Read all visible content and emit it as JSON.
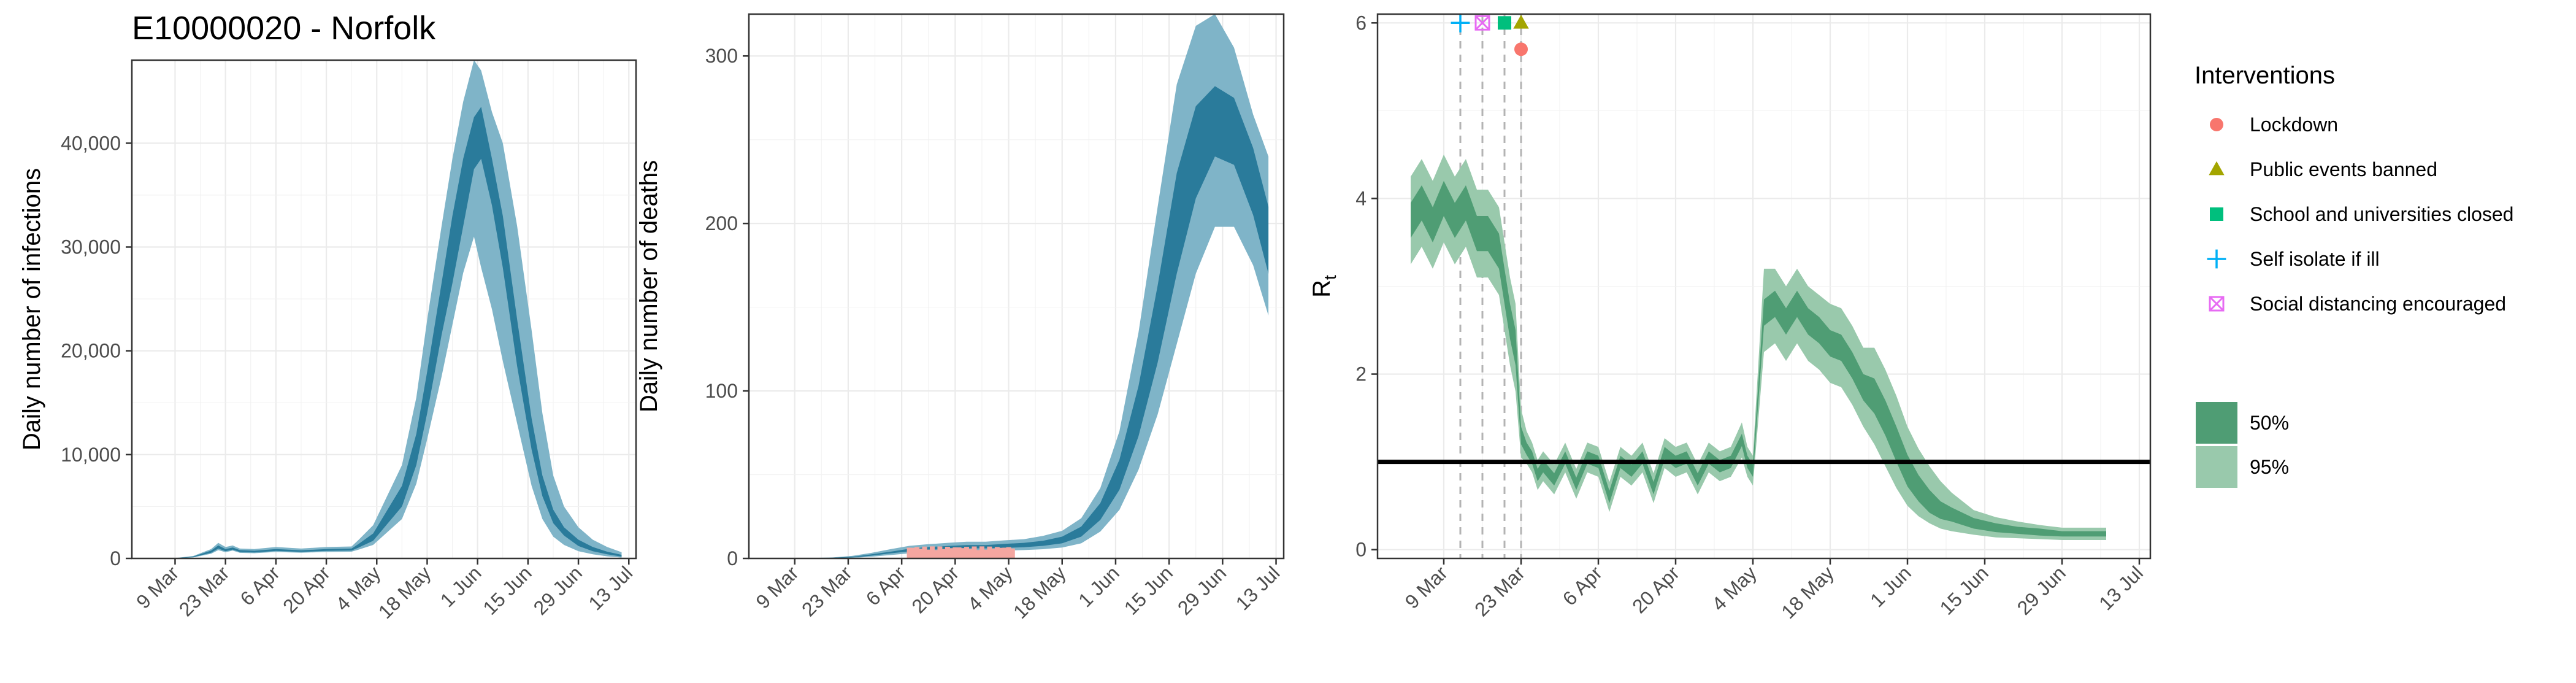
{
  "title": "E10000020 - Norfolk",
  "colors": {
    "infections_inner": "#2a7b9b",
    "infections_outer": "#7fb4c8",
    "rt_inner": "#4f9d74",
    "rt_outer": "#99c9ac",
    "lockdown": "#f8766d",
    "public_events": "#a3a500",
    "schools": "#00bf7d",
    "self_isolate": "#00b0f6",
    "social_distancing": "#e76bf3",
    "observed_deaths": "#f4a6a0"
  },
  "legend": {
    "interventions_title": "Interventions",
    "interventions": [
      {
        "label": "Lockdown",
        "shape": "circle",
        "color": "#f8766d"
      },
      {
        "label": "Public events banned",
        "shape": "triangle",
        "color": "#a3a500"
      },
      {
        "label": "School and universities closed",
        "shape": "square",
        "color": "#00bf7d"
      },
      {
        "label": "Self isolate if ill",
        "shape": "plus",
        "color": "#00b0f6"
      },
      {
        "label": "Social distancing encouraged",
        "shape": "boxed-x",
        "color": "#e76bf3"
      }
    ],
    "intervals": [
      {
        "label": "50%",
        "color": "#4f9d74"
      },
      {
        "label": "95%",
        "color": "#99c9ac"
      }
    ]
  },
  "chart_data": [
    {
      "type": "area",
      "ylabel": "Daily number of infections",
      "xlabel": "",
      "x_ticks": [
        "9 Mar",
        "23 Mar",
        "6 Apr",
        "20 Apr",
        "4 May",
        "18 May",
        "1 Jun",
        "15 Jun",
        "29 Jun",
        "13 Jul"
      ],
      "x_range_days": [
        -12,
        128
      ],
      "ylim": [
        0,
        48000
      ],
      "y_ticks": [
        0,
        10000,
        20000,
        30000,
        40000
      ],
      "y_tick_labels": [
        "0",
        "10,000",
        "20,000",
        "30,000",
        "40,000"
      ],
      "grid": true,
      "day_zero": "9 Mar",
      "series_day": [
        -6,
        0,
        5,
        10,
        12,
        14,
        16,
        18,
        22,
        28,
        35,
        42,
        49,
        51,
        55,
        63,
        67,
        70,
        74,
        77,
        80,
        83,
        85,
        88,
        91,
        95,
        99,
        102,
        105,
        108,
        112,
        116,
        120,
        124
      ],
      "median": [
        0,
        20,
        150,
        650,
        1100,
        800,
        950,
        700,
        650,
        800,
        700,
        800,
        850,
        1200,
        2000,
        6000,
        10500,
        16000,
        24000,
        30000,
        35000,
        41500,
        42000,
        36000,
        30500,
        20500,
        12000,
        7000,
        4000,
        2600,
        1500,
        900,
        500,
        250
      ],
      "ci50_low": [
        0,
        15,
        120,
        550,
        950,
        700,
        850,
        620,
        580,
        720,
        630,
        720,
        760,
        1050,
        1700,
        5000,
        9000,
        14000,
        21500,
        26500,
        32000,
        37500,
        38500,
        34000,
        28000,
        18500,
        10500,
        6000,
        3400,
        2200,
        1200,
        700,
        400,
        180
      ],
      "ci50_high": [
        0,
        25,
        180,
        750,
        1250,
        900,
        1050,
        800,
        740,
        900,
        780,
        900,
        950,
        1400,
        2400,
        7000,
        12000,
        18000,
        26500,
        33000,
        38500,
        42500,
        43500,
        38500,
        33000,
        23000,
        13500,
        8000,
        4700,
        3000,
        1800,
        1100,
        650,
        350
      ],
      "ci95_low": [
        0,
        10,
        90,
        450,
        800,
        600,
        750,
        540,
        500,
        620,
        550,
        620,
        650,
        850,
        1300,
        3800,
        7200,
        11500,
        17500,
        22500,
        27500,
        31000,
        28000,
        24000,
        19000,
        13000,
        7000,
        3800,
        2100,
        1300,
        700,
        400,
        200,
        80
      ],
      "ci95_high": [
        0,
        35,
        230,
        900,
        1500,
        1100,
        1250,
        950,
        900,
        1100,
        950,
        1100,
        1150,
        1800,
        3200,
        9000,
        15500,
        23000,
        32000,
        38500,
        44000,
        48000,
        47000,
        43000,
        40000,
        32000,
        22000,
        14000,
        8000,
        5000,
        3000,
        1800,
        1100,
        600
      ]
    },
    {
      "type": "area",
      "ylabel": "Daily number of deaths",
      "xlabel": "",
      "x_ticks": [
        "9 Mar",
        "23 Mar",
        "6 Apr",
        "20 Apr",
        "4 May",
        "18 May",
        "1 Jun",
        "15 Jun",
        "29 Jun",
        "13 Jul"
      ],
      "x_range_days": [
        -12,
        128
      ],
      "ylim": [
        0,
        325
      ],
      "y_ticks": [
        0,
        100,
        200,
        300
      ],
      "y_tick_labels": [
        "0",
        "100",
        "200",
        "300"
      ],
      "grid": true,
      "day_zero": "9 Mar",
      "series_day": [
        0,
        10,
        15,
        20,
        25,
        30,
        35,
        40,
        45,
        50,
        55,
        60,
        65,
        70,
        75,
        80,
        85,
        90,
        95,
        100,
        105,
        110,
        115,
        120,
        124
      ],
      "median": [
        0,
        0.3,
        0.8,
        2,
        3.5,
        5,
        6,
        6.5,
        7,
        7,
        7.5,
        8,
        9,
        11,
        16,
        28,
        50,
        88,
        140,
        200,
        245,
        262,
        255,
        225,
        190
      ],
      "ci50_low": [
        0,
        0.2,
        0.6,
        1.6,
        3,
        4.2,
        5.2,
        5.6,
        6,
        6,
        6.3,
        6.7,
        7.5,
        9,
        13,
        23,
        41,
        73,
        117,
        170,
        215,
        240,
        235,
        205,
        170
      ],
      "ci50_high": [
        0,
        0.4,
        1,
        2.4,
        4,
        5.8,
        6.8,
        7.4,
        8,
        8,
        8.7,
        9.3,
        10.5,
        13,
        19,
        33,
        59,
        103,
        163,
        230,
        270,
        282,
        275,
        245,
        210
      ],
      "ci95_low": [
        0,
        0.1,
        0.3,
        1,
        2,
        3,
        3.8,
        4.2,
        4.5,
        4.5,
        4.7,
        5,
        5.5,
        6.5,
        9,
        16,
        29,
        53,
        86,
        128,
        170,
        198,
        198,
        175,
        145
      ],
      "ci95_high": [
        0,
        0.6,
        1.5,
        3.3,
        5.5,
        7.5,
        8.5,
        9.3,
        10,
        10,
        10.8,
        11.5,
        13.5,
        16.5,
        24,
        42,
        76,
        135,
        210,
        283,
        318,
        325,
        305,
        265,
        240
      ],
      "observed_deaths": {
        "day_start": 30,
        "day_end": 57,
        "value": 6
      }
    },
    {
      "type": "area",
      "ylabel": "R",
      "ylabel_subscript": "t",
      "xlabel": "",
      "x_ticks": [
        "9 Mar",
        "23 Mar",
        "6 Apr",
        "20 Apr",
        "4 May",
        "18 May",
        "1 Jun",
        "15 Jun",
        "29 Jun",
        "13 Jul"
      ],
      "x_range_days": [
        -12,
        128
      ],
      "ylim": [
        -0.1,
        6.1
      ],
      "y_ticks": [
        0,
        2,
        4,
        6
      ],
      "y_tick_labels": [
        "0",
        "2",
        "4",
        "6"
      ],
      "grid": true,
      "day_zero": "9 Mar",
      "reference_line": 1,
      "series_day": [
        -6,
        -4,
        -2,
        0,
        2,
        4,
        6,
        8,
        10,
        11,
        12,
        13,
        14,
        15,
        16,
        17,
        18,
        20,
        22,
        24,
        26,
        28,
        30,
        32,
        34,
        36,
        38,
        40,
        42,
        44,
        46,
        48,
        50,
        52,
        54,
        55,
        56,
        58,
        60,
        62,
        64,
        66,
        68,
        70,
        72,
        74,
        76,
        78,
        80,
        82,
        84,
        86,
        88,
        90,
        92,
        94,
        96,
        100,
        104,
        108,
        112,
        116,
        120
      ],
      "median": [
        3.75,
        3.95,
        3.7,
        4.0,
        3.75,
        3.95,
        3.6,
        3.6,
        3.4,
        3.0,
        2.6,
        2.3,
        1.3,
        1.15,
        1.05,
        0.85,
        0.95,
        0.8,
        1.05,
        0.75,
        1.05,
        1.0,
        0.6,
        1.0,
        0.9,
        1.05,
        0.7,
        1.1,
        1.0,
        1.05,
        0.8,
        1.05,
        0.95,
        1.0,
        1.25,
        1.0,
        0.9,
        2.7,
        2.8,
        2.6,
        2.8,
        2.6,
        2.5,
        2.35,
        2.3,
        2.1,
        1.85,
        1.75,
        1.5,
        1.2,
        0.9,
        0.7,
        0.55,
        0.45,
        0.4,
        0.35,
        0.3,
        0.25,
        0.22,
        0.2,
        0.18,
        0.18,
        0.18
      ],
      "ci50_low": [
        3.55,
        3.75,
        3.5,
        3.8,
        3.55,
        3.75,
        3.4,
        3.4,
        3.2,
        2.8,
        2.4,
        2.1,
        1.2,
        1.08,
        0.98,
        0.78,
        0.88,
        0.73,
        0.98,
        0.68,
        0.98,
        0.93,
        0.53,
        0.93,
        0.83,
        0.98,
        0.63,
        1.03,
        0.93,
        0.98,
        0.73,
        0.98,
        0.88,
        0.93,
        1.18,
        0.93,
        0.83,
        2.55,
        2.65,
        2.45,
        2.65,
        2.45,
        2.35,
        2.2,
        2.15,
        1.95,
        1.7,
        1.55,
        1.3,
        1.0,
        0.72,
        0.55,
        0.42,
        0.35,
        0.32,
        0.28,
        0.24,
        0.2,
        0.18,
        0.16,
        0.15,
        0.15,
        0.15
      ],
      "ci50_high": [
        3.95,
        4.15,
        3.9,
        4.2,
        3.95,
        4.15,
        3.8,
        3.8,
        3.6,
        3.2,
        2.8,
        2.5,
        1.4,
        1.22,
        1.12,
        0.92,
        1.02,
        0.87,
        1.12,
        0.82,
        1.12,
        1.07,
        0.67,
        1.07,
        0.97,
        1.12,
        0.77,
        1.17,
        1.07,
        1.12,
        0.87,
        1.12,
        1.02,
        1.07,
        1.32,
        1.07,
        0.97,
        2.85,
        2.95,
        2.75,
        2.95,
        2.75,
        2.65,
        2.5,
        2.45,
        2.25,
        2.0,
        1.95,
        1.7,
        1.4,
        1.08,
        0.85,
        0.68,
        0.55,
        0.48,
        0.42,
        0.36,
        0.3,
        0.26,
        0.24,
        0.21,
        0.21,
        0.21
      ],
      "ci95_low": [
        3.25,
        3.45,
        3.2,
        3.5,
        3.25,
        3.45,
        3.1,
        3.1,
        2.9,
        2.5,
        2.1,
        1.8,
        1.05,
        0.98,
        0.88,
        0.68,
        0.78,
        0.63,
        0.88,
        0.58,
        0.88,
        0.83,
        0.43,
        0.83,
        0.73,
        0.88,
        0.53,
        0.93,
        0.83,
        0.88,
        0.63,
        0.88,
        0.78,
        0.83,
        1.05,
        0.83,
        0.73,
        2.25,
        2.35,
        2.15,
        2.35,
        2.15,
        2.05,
        1.9,
        1.85,
        1.65,
        1.4,
        1.2,
        0.95,
        0.7,
        0.5,
        0.38,
        0.3,
        0.24,
        0.21,
        0.19,
        0.17,
        0.14,
        0.13,
        0.12,
        0.11,
        0.11,
        0.11
      ],
      "ci95_high": [
        4.25,
        4.45,
        4.2,
        4.5,
        4.25,
        4.45,
        4.1,
        4.1,
        3.9,
        3.5,
        3.1,
        2.8,
        1.6,
        1.35,
        1.22,
        1.02,
        1.12,
        0.97,
        1.22,
        0.92,
        1.22,
        1.17,
        0.77,
        1.17,
        1.07,
        1.22,
        0.87,
        1.27,
        1.17,
        1.22,
        0.97,
        1.22,
        1.12,
        1.17,
        1.45,
        1.17,
        1.07,
        3.2,
        3.2,
        3.0,
        3.2,
        3.0,
        2.9,
        2.8,
        2.75,
        2.55,
        2.3,
        2.3,
        2.05,
        1.75,
        1.4,
        1.15,
        0.95,
        0.78,
        0.65,
        0.55,
        0.45,
        0.37,
        0.32,
        0.28,
        0.25,
        0.25,
        0.25
      ],
      "interventions": [
        {
          "label": "Self isolate if ill",
          "day": 3,
          "marker_y": 6.0
        },
        {
          "label": "Social distancing encouraged",
          "day": 7,
          "marker_y": 6.0
        },
        {
          "label": "School and universities closed",
          "day": 11,
          "marker_y": 6.0
        },
        {
          "label": "Public events banned",
          "day": 14,
          "marker_y": 6.0
        },
        {
          "label": "Lockdown",
          "day": 14,
          "marker_y": 5.7
        }
      ]
    }
  ]
}
